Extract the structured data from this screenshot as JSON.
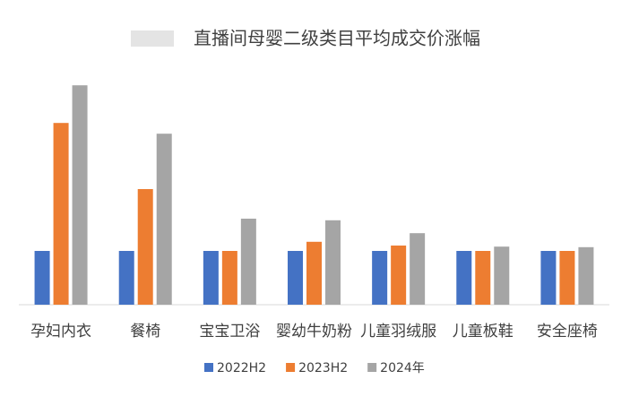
{
  "chart_data": {
    "type": "bar",
    "title": "直播间母婴二级类目平均成交价涨幅",
    "categories": [
      "孕妇内衣",
      "餐椅",
      "宝宝卫浴",
      "婴幼牛奶粉",
      "儿童羽绒服",
      "儿童板鞋",
      "安全座椅"
    ],
    "series": [
      {
        "name": "2022H2",
        "color": "#4472c4",
        "values": [
          1,
          1,
          1,
          1,
          1,
          1,
          1
        ]
      },
      {
        "name": "2023H2",
        "color": "#ed7d31",
        "values": [
          3.38,
          2.15,
          1.0,
          1.17,
          1.1,
          1.0,
          1.0
        ]
      },
      {
        "name": "2024年",
        "color": "#a5a5a5",
        "values": [
          4.08,
          3.18,
          1.6,
          1.57,
          1.33,
          1.08,
          1.07
        ]
      }
    ],
    "ylim": [
      0,
      4.5
    ]
  }
}
